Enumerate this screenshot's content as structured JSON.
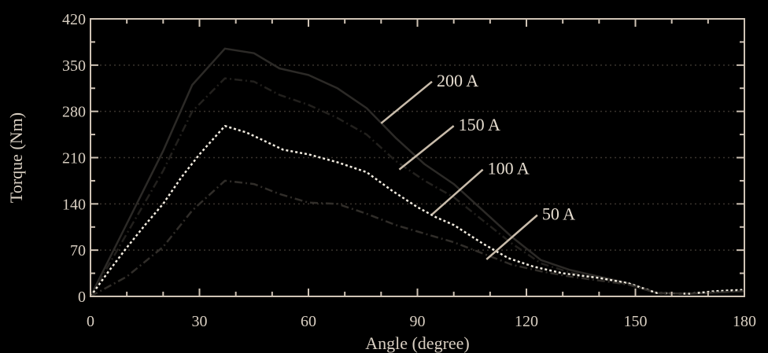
{
  "colors": {
    "background": "#000000",
    "axes": "#cfc3b5",
    "text": "#d9cfc2",
    "grid": "#3a342e",
    "series_200": "#2c2a27",
    "series_150": "#22201d",
    "series_100": "#f2ece0",
    "series_50": "#302d29",
    "pointer": "#c9bcab"
  },
  "chart_data": {
    "type": "line",
    "title": "",
    "xlabel": "Angle (degree)",
    "ylabel": "Torque (Nm)",
    "xlim": [
      0,
      180
    ],
    "ylim": [
      0,
      420
    ],
    "xticks": [
      0,
      30,
      60,
      90,
      120,
      150,
      180
    ],
    "yticks": [
      0,
      70,
      140,
      210,
      280,
      350,
      420
    ],
    "grid": "horizontal dotted",
    "legend": "none",
    "series": [
      {
        "name": "200 A",
        "style": "solid",
        "x": [
          0,
          10,
          20,
          28,
          37,
          45,
          52,
          60,
          68,
          76,
          84,
          92,
          100,
          108,
          116,
          124,
          132,
          140,
          148,
          156,
          165,
          180
        ],
        "y": [
          0,
          110,
          220,
          320,
          375,
          368,
          345,
          335,
          315,
          285,
          240,
          200,
          170,
          130,
          90,
          55,
          40,
          30,
          20,
          5,
          4,
          8
        ]
      },
      {
        "name": "150 A",
        "style": "dash-dot",
        "x": [
          0,
          10,
          20,
          28,
          37,
          45,
          52,
          60,
          68,
          76,
          84,
          92,
          100,
          108,
          116,
          124,
          132,
          140,
          148,
          156,
          165,
          180
        ],
        "y": [
          0,
          95,
          190,
          280,
          330,
          325,
          305,
          290,
          270,
          245,
          205,
          175,
          150,
          115,
          80,
          50,
          36,
          28,
          18,
          5,
          4,
          8
        ]
      },
      {
        "name": "100 A",
        "style": "dotted",
        "x": [
          0,
          5,
          10,
          15,
          20,
          25,
          30,
          37,
          43,
          48,
          53,
          60,
          68,
          76,
          83,
          90,
          95,
          100,
          108,
          115,
          122,
          130,
          140,
          148,
          156,
          165,
          172,
          180
        ],
        "y": [
          0,
          38,
          74,
          108,
          140,
          180,
          215,
          258,
          248,
          235,
          222,
          215,
          203,
          188,
          160,
          135,
          120,
          108,
          80,
          58,
          45,
          35,
          28,
          20,
          5,
          4,
          8,
          10
        ]
      },
      {
        "name": "50 A",
        "style": "dash-dot",
        "x": [
          0,
          10,
          20,
          28,
          37,
          45,
          52,
          60,
          68,
          76,
          84,
          92,
          100,
          108,
          116,
          124,
          132,
          140,
          148,
          156,
          165,
          180
        ],
        "y": [
          0,
          30,
          75,
          130,
          175,
          170,
          155,
          142,
          140,
          125,
          108,
          95,
          82,
          65,
          48,
          38,
          30,
          24,
          18,
          5,
          4,
          8
        ]
      }
    ],
    "annotations": [
      {
        "text": "200 A",
        "series": "200 A",
        "at_x": 80,
        "at_y": 262,
        "label_x": 94,
        "label_y": 325
      },
      {
        "text": "150 A",
        "series": "150 A",
        "at_x": 85,
        "at_y": 192,
        "label_x": 100,
        "label_y": 258
      },
      {
        "text": "100 A",
        "series": "100 A",
        "at_x": 94,
        "at_y": 124,
        "label_x": 108,
        "label_y": 192
      },
      {
        "text": "50 A",
        "series": "50 A",
        "at_x": 109,
        "at_y": 56,
        "label_x": 123,
        "label_y": 123
      }
    ]
  }
}
